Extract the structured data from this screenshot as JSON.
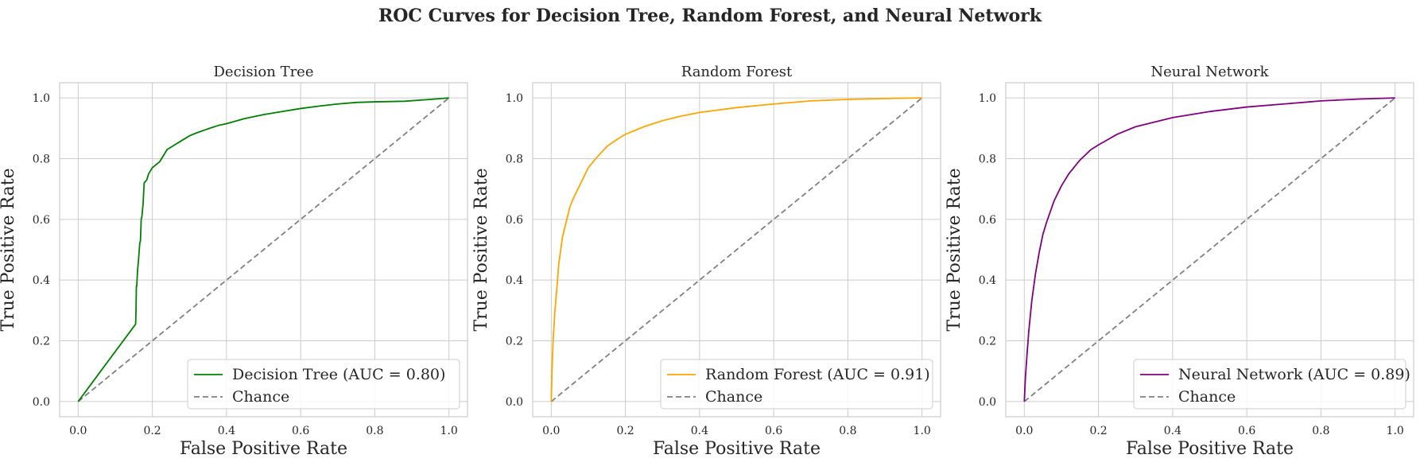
{
  "figure": {
    "suptitle": "ROC Curves for Decision Tree, Random Forest, and Neural Network"
  },
  "chart_data": [
    {
      "type": "line",
      "title": "Decision Tree",
      "xlabel": "False Positive Rate",
      "ylabel": "True Positive Rate",
      "xlim": [
        -0.05,
        1.05
      ],
      "ylim": [
        -0.05,
        1.05
      ],
      "xticks": [
        "0.0",
        "0.2",
        "0.4",
        "0.6",
        "0.8",
        "1.0"
      ],
      "yticks": [
        "0.0",
        "0.2",
        "0.4",
        "0.6",
        "0.8",
        "1.0"
      ],
      "grid": true,
      "legend_position": "lower-right",
      "series": [
        {
          "name": "Decision Tree (AUC = 0.80)",
          "color": "#008000",
          "style": "solid",
          "x": [
            0.0,
            0.155,
            0.156,
            0.157,
            0.158,
            0.16,
            0.163,
            0.166,
            0.168,
            0.17,
            0.172,
            0.175,
            0.178,
            0.185,
            0.19,
            0.2,
            0.21,
            0.22,
            0.23,
            0.24,
            0.26,
            0.28,
            0.3,
            0.32,
            0.35,
            0.38,
            0.4,
            0.45,
            0.5,
            0.55,
            0.6,
            0.65,
            0.7,
            0.75,
            0.8,
            0.88,
            0.95,
            1.0
          ],
          "y": [
            0.0,
            0.255,
            0.3,
            0.38,
            0.38,
            0.43,
            0.47,
            0.52,
            0.53,
            0.6,
            0.61,
            0.65,
            0.72,
            0.73,
            0.75,
            0.77,
            0.78,
            0.79,
            0.81,
            0.83,
            0.845,
            0.86,
            0.875,
            0.885,
            0.898,
            0.91,
            0.915,
            0.932,
            0.945,
            0.955,
            0.965,
            0.973,
            0.98,
            0.985,
            0.987,
            0.989,
            0.995,
            1.0
          ]
        },
        {
          "name": "Chance",
          "color": "#808080",
          "style": "dashed",
          "x": [
            0.0,
            1.0
          ],
          "y": [
            0.0,
            1.0
          ]
        }
      ]
    },
    {
      "type": "line",
      "title": "Random Forest",
      "xlabel": "False Positive Rate",
      "ylabel": "True Positive Rate",
      "xlim": [
        -0.05,
        1.05
      ],
      "ylim": [
        -0.05,
        1.05
      ],
      "xticks": [
        "0.0",
        "0.2",
        "0.4",
        "0.6",
        "0.8",
        "1.0"
      ],
      "yticks": [
        "0.0",
        "0.2",
        "0.4",
        "0.6",
        "0.8",
        "1.0"
      ],
      "grid": true,
      "legend_position": "lower-right",
      "series": [
        {
          "name": "Random Forest (AUC = 0.91)",
          "color": "#FFA500",
          "style": "solid",
          "x": [
            0.0,
            0.002,
            0.005,
            0.01,
            0.015,
            0.02,
            0.03,
            0.04,
            0.05,
            0.06,
            0.08,
            0.1,
            0.12,
            0.15,
            0.18,
            0.2,
            0.25,
            0.3,
            0.35,
            0.4,
            0.5,
            0.6,
            0.7,
            0.8,
            0.9,
            1.0
          ],
          "y": [
            0.0,
            0.1,
            0.2,
            0.3,
            0.37,
            0.45,
            0.54,
            0.59,
            0.64,
            0.67,
            0.72,
            0.77,
            0.8,
            0.84,
            0.865,
            0.88,
            0.905,
            0.925,
            0.94,
            0.952,
            0.968,
            0.98,
            0.99,
            0.995,
            0.998,
            1.0
          ]
        },
        {
          "name": "Chance",
          "color": "#808080",
          "style": "dashed",
          "x": [
            0.0,
            1.0
          ],
          "y": [
            0.0,
            1.0
          ]
        }
      ]
    },
    {
      "type": "line",
      "title": "Neural Network",
      "xlabel": "False Positive Rate",
      "ylabel": "True Positive Rate",
      "xlim": [
        -0.05,
        1.05
      ],
      "ylim": [
        -0.05,
        1.05
      ],
      "xticks": [
        "0.0",
        "0.2",
        "0.4",
        "0.6",
        "0.8",
        "1.0"
      ],
      "yticks": [
        "0.0",
        "0.2",
        "0.4",
        "0.6",
        "0.8",
        "1.0"
      ],
      "grid": true,
      "legend_position": "lower-right",
      "series": [
        {
          "name": "Neural Network (AUC = 0.89)",
          "color": "#800080",
          "style": "solid",
          "x": [
            0.0,
            0.003,
            0.007,
            0.012,
            0.02,
            0.03,
            0.04,
            0.05,
            0.06,
            0.08,
            0.1,
            0.12,
            0.15,
            0.18,
            0.2,
            0.25,
            0.3,
            0.35,
            0.4,
            0.5,
            0.6,
            0.7,
            0.8,
            0.9,
            1.0
          ],
          "y": [
            0.0,
            0.08,
            0.15,
            0.23,
            0.33,
            0.42,
            0.49,
            0.55,
            0.59,
            0.66,
            0.71,
            0.75,
            0.795,
            0.83,
            0.845,
            0.88,
            0.905,
            0.92,
            0.935,
            0.955,
            0.97,
            0.98,
            0.99,
            0.996,
            1.0
          ]
        },
        {
          "name": "Chance",
          "color": "#808080",
          "style": "dashed",
          "x": [
            0.0,
            1.0
          ],
          "y": [
            0.0,
            1.0
          ]
        }
      ]
    }
  ]
}
